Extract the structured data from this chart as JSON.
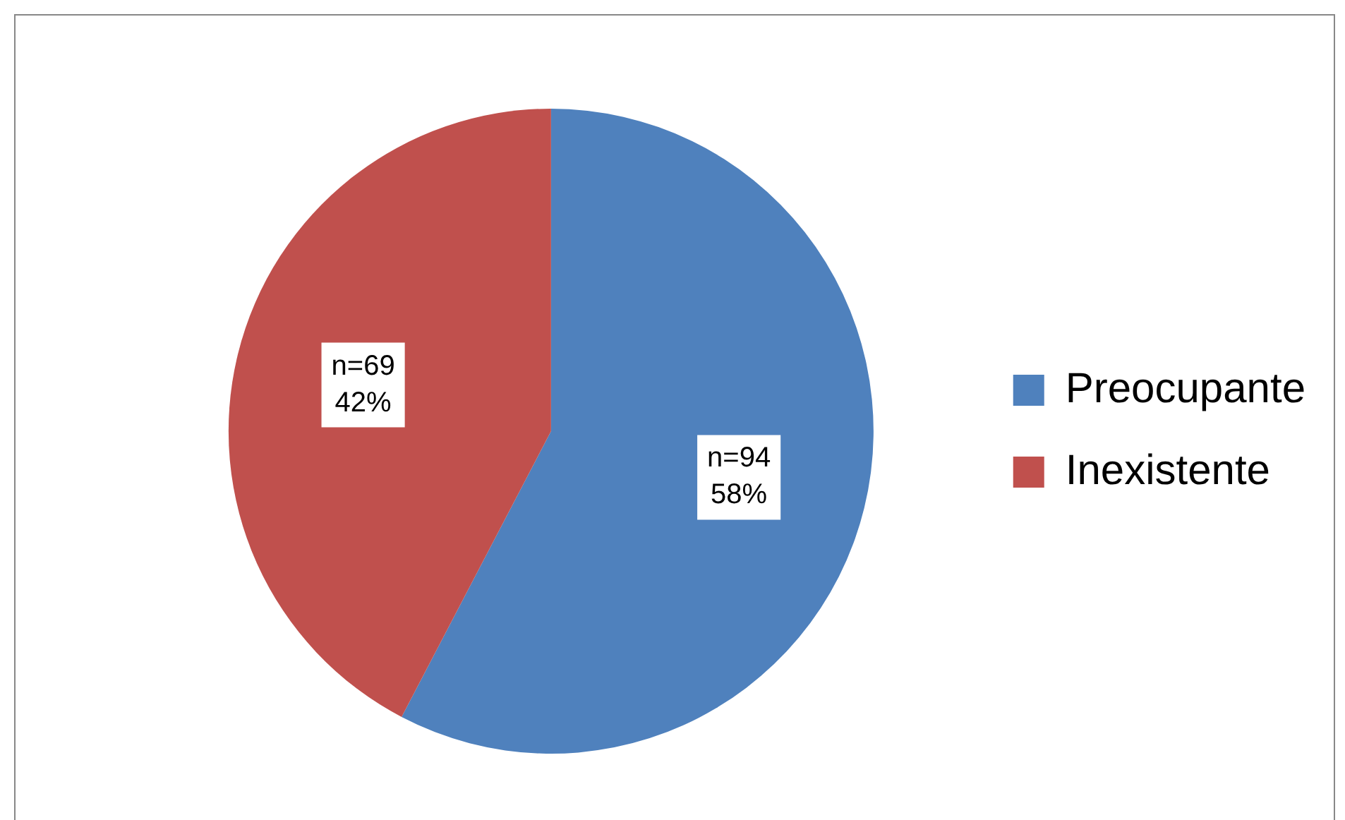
{
  "chart_data": {
    "type": "pie",
    "categories": [
      "Preocupante",
      "Inexistente"
    ],
    "values": [
      94,
      69
    ],
    "colors": [
      "#4f81bd",
      "#c0504d"
    ],
    "value_labels": [
      "n=94\n58%",
      "n=69\n42%"
    ],
    "legend": "right"
  }
}
